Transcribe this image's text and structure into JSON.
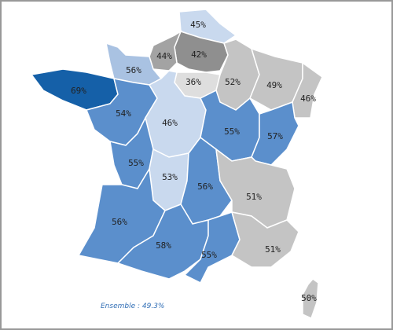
{
  "map": {
    "regions": [
      {
        "value": 45,
        "label": "45%",
        "color": "#c9d9ee"
      },
      {
        "value": 42,
        "label": "42%",
        "color": "#8f8f8f"
      },
      {
        "value": 44,
        "label": "44%",
        "color": "#a3a3a3"
      },
      {
        "value": 56,
        "label": "56%",
        "color": "#a9c2e2"
      },
      {
        "value": 69,
        "label": "69%",
        "color": "#1560a8"
      },
      {
        "value": 36,
        "label": "36%",
        "color": "#dedede"
      },
      {
        "value": 52,
        "label": "52%",
        "color": "#c4c4c4"
      },
      {
        "value": 49,
        "label": "49%",
        "color": "#c4c4c4"
      },
      {
        "value": 46,
        "label": "46%",
        "color": "#c4c4c4"
      },
      {
        "value": 54,
        "label": "54%",
        "color": "#5b8fcc"
      },
      {
        "value": 46,
        "label": "46%",
        "color": "#c9d9ee"
      },
      {
        "value": 55,
        "label": "55%",
        "color": "#5b8fcc"
      },
      {
        "value": 57,
        "label": "57%",
        "color": "#5b8fcc"
      },
      {
        "value": 55,
        "label": "55%",
        "color": "#5b8fcc"
      },
      {
        "value": 53,
        "label": "53%",
        "color": "#c9d9ee"
      },
      {
        "value": 56,
        "label": "56%",
        "color": "#5b8fcc"
      },
      {
        "value": 51,
        "label": "51%",
        "color": "#c4c4c4"
      },
      {
        "value": 56,
        "label": "56%",
        "color": "#5b8fcc"
      },
      {
        "value": 58,
        "label": "58%",
        "color": "#5b8fcc"
      },
      {
        "value": 55,
        "label": "55%",
        "color": "#5b8fcc"
      },
      {
        "value": 51,
        "label": "51%",
        "color": "#c4c4c4"
      },
      {
        "value": 50,
        "label": "50%",
        "color": "#c4c4c4"
      }
    ],
    "footnote": "Ensemble : 49.3%"
  }
}
